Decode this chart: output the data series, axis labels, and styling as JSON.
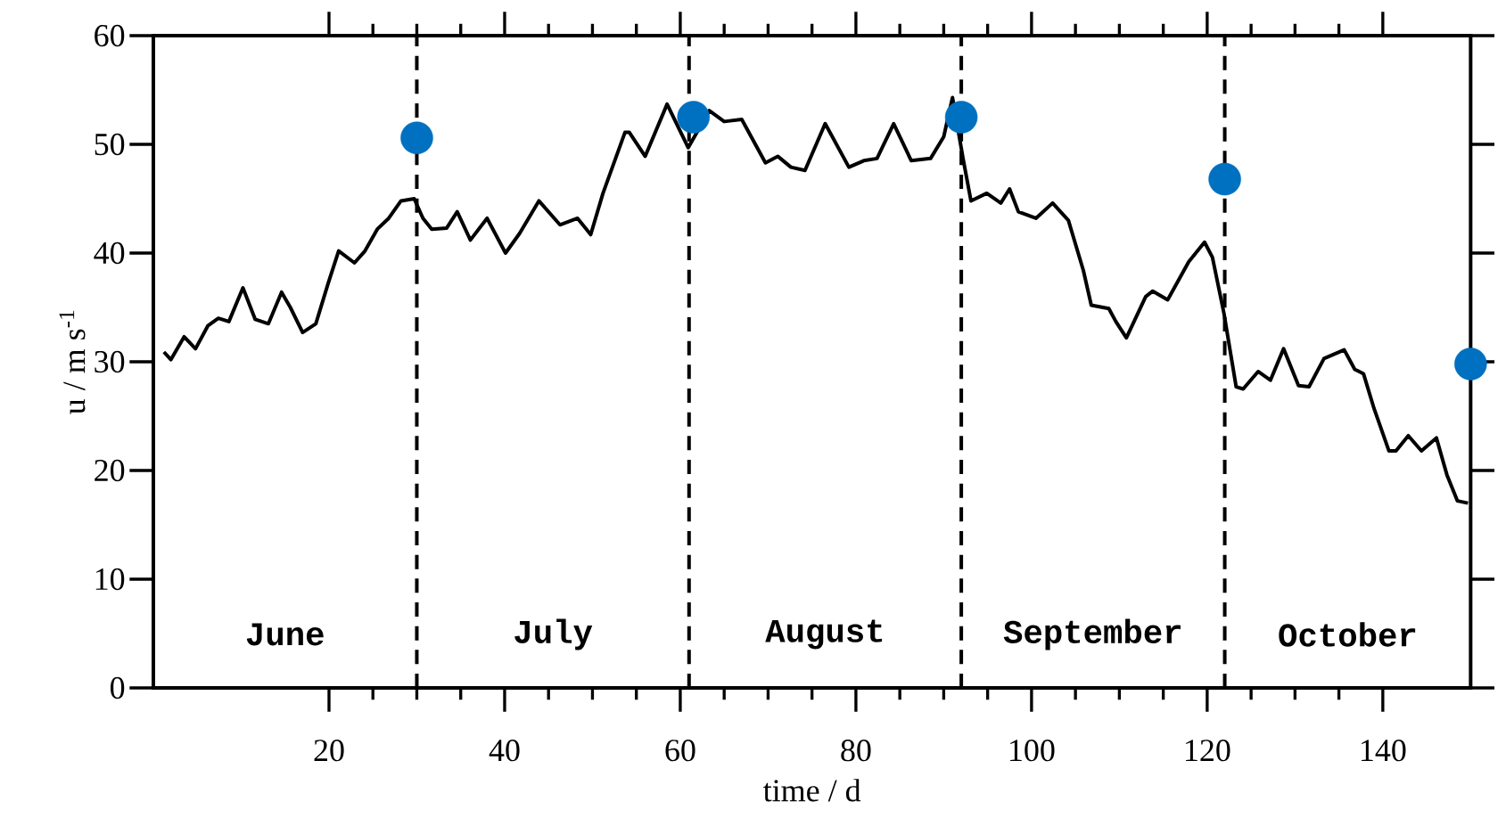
{
  "chart_data": {
    "type": "line",
    "xlabel": "time / d",
    "ylabel": "u / m s$^{-1}$",
    "xlim": [
      0,
      150
    ],
    "ylim": [
      0,
      60
    ],
    "xticks": [
      20,
      40,
      60,
      80,
      100,
      120,
      140
    ],
    "yticks": [
      0,
      10,
      20,
      30,
      40,
      50,
      60
    ],
    "grid": false,
    "series": [
      {
        "color": "#000000",
        "line_style": "solid",
        "marker": "none",
        "x": [
          1.2,
          2.0,
          3.5,
          4.8,
          6.2,
          7.4,
          8.6,
          10.2,
          11.6,
          13.1,
          14.6,
          15.6,
          17.0,
          18.5,
          19.9,
          21.1,
          22.9,
          24.1,
          25.5,
          26.8,
          28.2,
          29.7,
          30.7,
          31.7,
          33.4,
          34.6,
          36.1,
          38.0,
          40.1,
          41.7,
          43.9,
          46.3,
          48.3,
          49.8,
          51.2,
          53.7,
          54.2,
          56.0,
          58.5,
          60.9,
          63.3,
          65.0,
          67.0,
          69.7,
          71.1,
          72.6,
          74.2,
          76.5,
          79.2,
          80.9,
          82.4,
          84.3,
          86.3,
          88.5,
          90.0,
          91.0,
          92.2,
          93.1,
          94.9,
          96.5,
          97.5,
          98.5,
          100.5,
          102.4,
          104.2,
          105.9,
          106.8,
          108.8,
          109.6,
          110.8,
          113.0,
          113.8,
          115.5,
          117.9,
          119.7,
          120.6,
          121.9,
          123.3,
          124.1,
          125.8,
          127.2,
          128.7,
          130.4,
          131.6,
          133.3,
          135.6,
          136.8,
          137.8,
          139.0,
          140.7,
          141.5,
          142.9,
          144.4,
          146.1,
          147.3,
          148.5,
          149.7
        ],
        "values": [
          30.9,
          30.2,
          32.3,
          31.2,
          33.3,
          34.0,
          33.7,
          36.8,
          33.9,
          33.5,
          36.4,
          35.0,
          32.7,
          33.5,
          37.2,
          40.2,
          39.1,
          40.2,
          42.2,
          43.2,
          44.8,
          45.0,
          43.2,
          42.2,
          42.3,
          43.8,
          41.2,
          43.2,
          40.0,
          41.8,
          44.8,
          42.6,
          43.2,
          41.7,
          45.5,
          51.1,
          51.1,
          48.9,
          53.7,
          49.7,
          53.1,
          52.1,
          52.3,
          48.3,
          48.9,
          47.9,
          47.6,
          51.9,
          47.9,
          48.5,
          48.7,
          51.9,
          48.5,
          48.7,
          50.7,
          54.3,
          48.7,
          44.8,
          45.5,
          44.6,
          45.9,
          43.8,
          43.2,
          44.6,
          43.0,
          38.4,
          35.2,
          34.9,
          33.7,
          32.2,
          36.0,
          36.5,
          35.7,
          39.2,
          41.0,
          39.6,
          34.5,
          27.7,
          27.5,
          29.1,
          28.3,
          31.2,
          27.8,
          27.7,
          30.3,
          31.1,
          29.3,
          28.9,
          25.7,
          21.8,
          21.8,
          23.2,
          21.8,
          23.0,
          19.6,
          17.2,
          17.0
        ]
      },
      {
        "type": "scatter",
        "color": "#0070c0",
        "marker": "circle",
        "x": [
          30,
          61.5,
          92,
          122,
          150
        ],
        "values": [
          50.6,
          52.5,
          52.5,
          46.8,
          29.8
        ]
      }
    ],
    "ref_lines": [
      {
        "axis": "x",
        "value": 30,
        "line_style": "dashed",
        "color": "#000000"
      },
      {
        "axis": "x",
        "value": 61,
        "line_style": "dashed",
        "color": "#000000"
      },
      {
        "axis": "x",
        "value": 92,
        "line_style": "dashed",
        "color": "#000000"
      },
      {
        "axis": "x",
        "value": 122,
        "line_style": "dashed",
        "color": "#000000"
      }
    ],
    "annotations": [
      "June",
      "July",
      "August",
      "September",
      "October"
    ]
  }
}
